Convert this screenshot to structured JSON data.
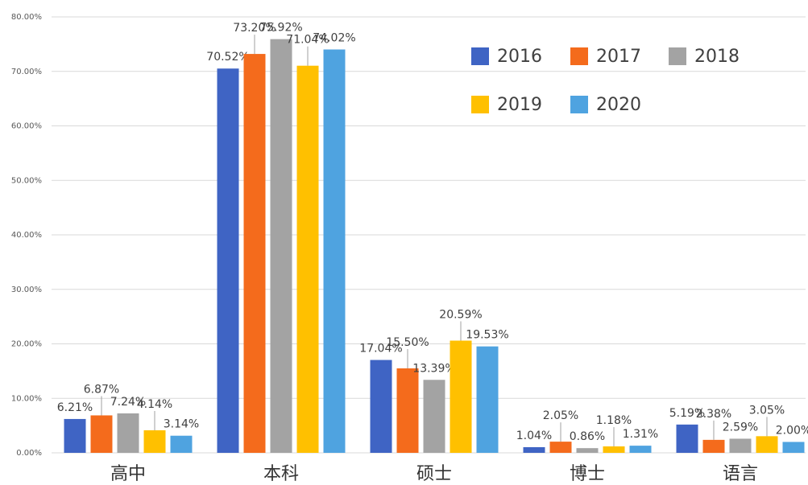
{
  "chart_data": {
    "type": "bar",
    "categories": [
      "高中",
      "本科",
      "硕士",
      "博士",
      "语言"
    ],
    "series": [
      {
        "name": "2016",
        "color": "#3f64c4",
        "values": [
          6.21,
          70.52,
          17.04,
          1.04,
          5.19
        ],
        "value_labels": [
          "6.21%",
          "70.52%",
          "17.04%",
          "1.04%",
          "5.19%"
        ]
      },
      {
        "name": "2017",
        "color": "#f46b1c",
        "values": [
          6.87,
          73.2,
          15.5,
          2.05,
          2.38
        ],
        "value_labels": [
          "6.87%",
          "73.20%",
          "15.50%",
          "2.05%",
          "2.38%"
        ]
      },
      {
        "name": "2018",
        "color": "#a3a3a3",
        "values": [
          7.24,
          75.92,
          13.39,
          0.86,
          2.59
        ],
        "value_labels": [
          "7.24%",
          "75.92%",
          "13.39%",
          "0.86%",
          "2.59%"
        ]
      },
      {
        "name": "2019",
        "color": "#ffc000",
        "values": [
          4.14,
          71.04,
          20.59,
          1.18,
          3.05
        ],
        "value_labels": [
          "4.14%",
          "71.04%",
          "20.59%",
          "1.18%",
          "3.05%"
        ]
      },
      {
        "name": "2020",
        "color": "#4fa3e0",
        "values": [
          3.14,
          74.02,
          19.53,
          1.31,
          2.0
        ],
        "value_labels": [
          "3.14%",
          "74.02%",
          "19.53%",
          "1.31%",
          "2.00%"
        ]
      }
    ],
    "ylim": [
      0,
      80
    ],
    "yticks": [
      {
        "value": 0,
        "label": "0.00%"
      },
      {
        "value": 10,
        "label": "10.00%"
      },
      {
        "value": 20,
        "label": "20.00%"
      },
      {
        "value": 30,
        "label": "30.00%"
      },
      {
        "value": 40,
        "label": "40.00%"
      },
      {
        "value": 50,
        "label": "50.00%"
      },
      {
        "value": 60,
        "label": "60.00%"
      },
      {
        "value": 70,
        "label": "70.00%"
      },
      {
        "value": 80,
        "label": "80.00%"
      }
    ],
    "grid": true
  }
}
